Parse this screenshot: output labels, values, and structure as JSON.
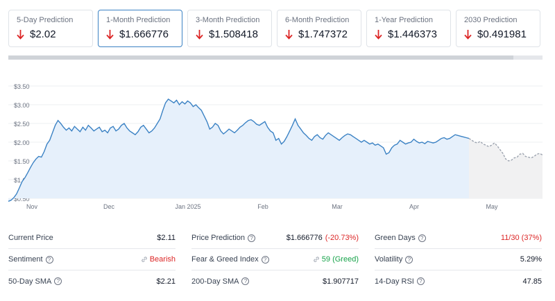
{
  "predictions": [
    {
      "label": "5-Day Prediction",
      "value": "$2.02",
      "active": false
    },
    {
      "label": "1-Month Prediction",
      "value": "$1.666776",
      "active": true
    },
    {
      "label": "3-Month Prediction",
      "value": "$1.508418",
      "active": false
    },
    {
      "label": "6-Month Prediction",
      "value": "$1.747372",
      "active": false
    },
    {
      "label": "1-Year Prediction",
      "value": "$1.446373",
      "active": false
    },
    {
      "label": "2030 Prediction",
      "value": "$0.491981",
      "active": false
    }
  ],
  "colors": {
    "down_arrow": "#dc2626",
    "line": "#3b82c4",
    "area": "#e6f0fb",
    "forecast_line": "#9ca3af",
    "forecast_area": "#f1f1f2"
  },
  "chart_data": {
    "type": "line",
    "x_axis": [
      "Nov",
      "Dec",
      "Jan 2025",
      "Feb",
      "Mar",
      "Apr",
      "May"
    ],
    "y_ticks": [
      "$0.50",
      "$1.00",
      "$1.50",
      "$2.00",
      "$2.50",
      "$3.00",
      "$3.50"
    ],
    "ylim": [
      0.5,
      3.5
    ],
    "grid": true,
    "series": [
      {
        "values": [
          0.42,
          0.45,
          0.52,
          0.62,
          0.78,
          0.95,
          1.05,
          1.18,
          1.32,
          1.45,
          1.55,
          1.62,
          1.6,
          1.75,
          1.95,
          2.05,
          2.25,
          2.45,
          2.58,
          2.5,
          2.4,
          2.32,
          2.38,
          2.3,
          2.42,
          2.35,
          2.28,
          2.4,
          2.32,
          2.45,
          2.38,
          2.3,
          2.35,
          2.4,
          2.28,
          2.32,
          2.25,
          2.38,
          2.42,
          2.3,
          2.35,
          2.45,
          2.5,
          2.38,
          2.3,
          2.25,
          2.2,
          2.28,
          2.4,
          2.45,
          2.35,
          2.25,
          2.3,
          2.38,
          2.5,
          2.62,
          2.85,
          3.05,
          3.15,
          3.1,
          3.05,
          3.12,
          3.0,
          3.08,
          3.02,
          3.1,
          3.05,
          2.95,
          3.0,
          2.92,
          2.85,
          2.7,
          2.55,
          2.35,
          2.4,
          2.5,
          2.45,
          2.3,
          2.22,
          2.28,
          2.35,
          2.3,
          2.25,
          2.32,
          2.4,
          2.45,
          2.52,
          2.58,
          2.6,
          2.55,
          2.48,
          2.45,
          2.5,
          2.55,
          2.4,
          2.3,
          2.25,
          2.05,
          2.1,
          1.95,
          2.02,
          2.15,
          2.3,
          2.45,
          2.62,
          2.45,
          2.35,
          2.25,
          2.18,
          2.1,
          2.05,
          2.15,
          2.2,
          2.12,
          2.08,
          2.18,
          2.25,
          2.2,
          2.15,
          2.1,
          2.05,
          2.12,
          2.18,
          2.22,
          2.2,
          2.15,
          2.1,
          2.05,
          2.0,
          2.05,
          2.0,
          1.95,
          1.98,
          1.92,
          1.95,
          1.9,
          1.85,
          1.68,
          1.72,
          1.85,
          1.92,
          1.95,
          2.05,
          2.0,
          1.95,
          1.98,
          2.0,
          2.08,
          2.02,
          1.98,
          2.0,
          1.96,
          2.02,
          2.0,
          1.98,
          2.0,
          2.05,
          2.1,
          2.12,
          2.08,
          2.1,
          2.15,
          2.2,
          2.18,
          2.16,
          2.14,
          2.12,
          2.1
        ]
      },
      {
        "values": [
          2.1,
          2.05,
          2.0,
          1.98,
          2.02,
          1.95,
          1.92,
          1.88,
          1.92,
          1.98,
          1.9,
          1.8,
          1.7,
          1.55,
          1.5,
          1.52,
          1.58,
          1.6,
          1.68,
          1.7,
          1.62,
          1.6,
          1.58,
          1.62,
          1.68,
          1.7,
          1.66
        ]
      }
    ]
  },
  "stats": [
    [
      {
        "label": "Current Price",
        "help": false,
        "value": "$2.11",
        "tone": ""
      },
      {
        "label": "Sentiment",
        "help": true,
        "value": "Bearish",
        "tone": "red",
        "link_icon": true
      },
      {
        "label": "50-Day SMA",
        "help": true,
        "value": "$2.21",
        "tone": ""
      }
    ],
    [
      {
        "label": "Price Prediction",
        "help": true,
        "value": "$1.666776",
        "pct": "(-20.73%)",
        "tone": ""
      },
      {
        "label": "Fear & Greed Index",
        "help": true,
        "value": "59 (Greed)",
        "tone": "green",
        "link_icon": true
      },
      {
        "label": "200-Day SMA",
        "help": true,
        "value": "$1.907717",
        "tone": ""
      }
    ],
    [
      {
        "label": "Green Days",
        "help": true,
        "value": "11/30 (37%)",
        "tone": "red"
      },
      {
        "label": "Volatility",
        "help": true,
        "value": "5.29%",
        "tone": ""
      },
      {
        "label": "14-Day RSI",
        "help": true,
        "value": "47.85",
        "tone": ""
      }
    ]
  ]
}
